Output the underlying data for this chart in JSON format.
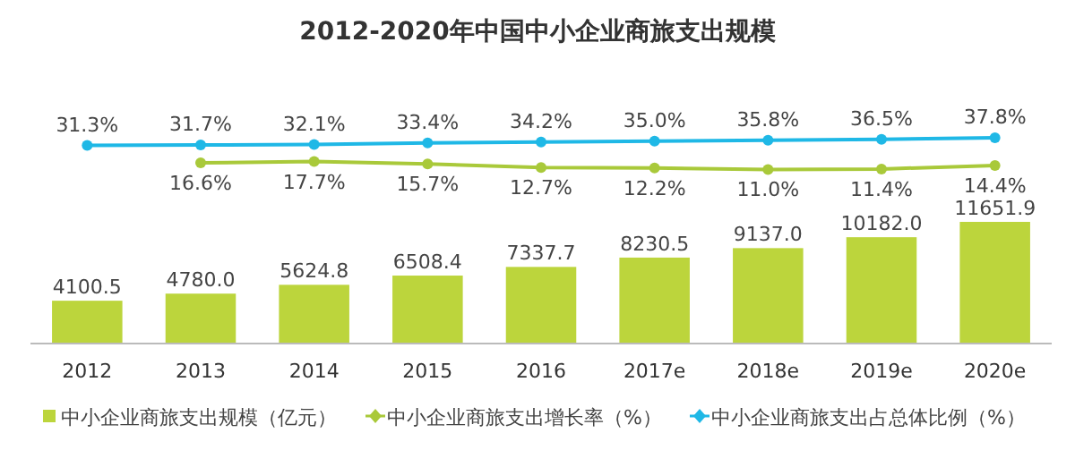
{
  "chart_data": [
    {
      "type": "line",
      "title": "2012-2020年中国中小企业商旅支出规模",
      "categories": [
        null,
        null,
        null,
        null,
        null,
        null,
        null,
        null,
        null
      ],
      "series": [
        {
          "name": "中小企业商旅支出增长率（%）",
          "color": "#a9c93a",
          "values": [
            null,
            16.6,
            17.7,
            15.7,
            12.7,
            12.2,
            11.0,
            11.4,
            14.4
          ],
          "value_labels": [
            null,
            "16.6%",
            "17.7%",
            "15.7%",
            "12.7%",
            "12.2%",
            "11.0%",
            "11.4%",
            "14.4%"
          ]
        },
        {
          "name": "中小企业商旅支出占总体比例（%）",
          "color": "#1fb8e6",
          "values": [
            31.3,
            31.7,
            32.1,
            33.4,
            34.2,
            35.0,
            35.8,
            36.5,
            37.8
          ],
          "value_labels": [
            "31.3%",
            "31.7%",
            "32.1%",
            "33.4%",
            "34.2%",
            "35.0%",
            "35.8%",
            "36.5%",
            "37.8%"
          ]
        }
      ],
      "legend": "bottom",
      "marker": "circle",
      "line_style": "solid"
    },
    {
      "type": "bar",
      "categories": [
        "2012",
        "2013",
        "2014",
        "2015",
        "2016",
        "2017e",
        "2018e",
        "2019e",
        "2020e"
      ],
      "series": [
        {
          "name": "中小企业商旅支出规模（亿元）",
          "color": "#bcd53c",
          "values": [
            4100.5,
            4780.0,
            5624.8,
            6508.4,
            7337.7,
            8230.5,
            9137.0,
            10182.0,
            11651.9
          ],
          "value_labels": [
            "4100.5",
            "4780.0",
            "5624.8",
            "6508.4",
            "7337.7",
            "8230.5",
            "9137.0",
            "10182.0",
            "11651.9"
          ]
        }
      ],
      "legend": "bottom"
    }
  ]
}
